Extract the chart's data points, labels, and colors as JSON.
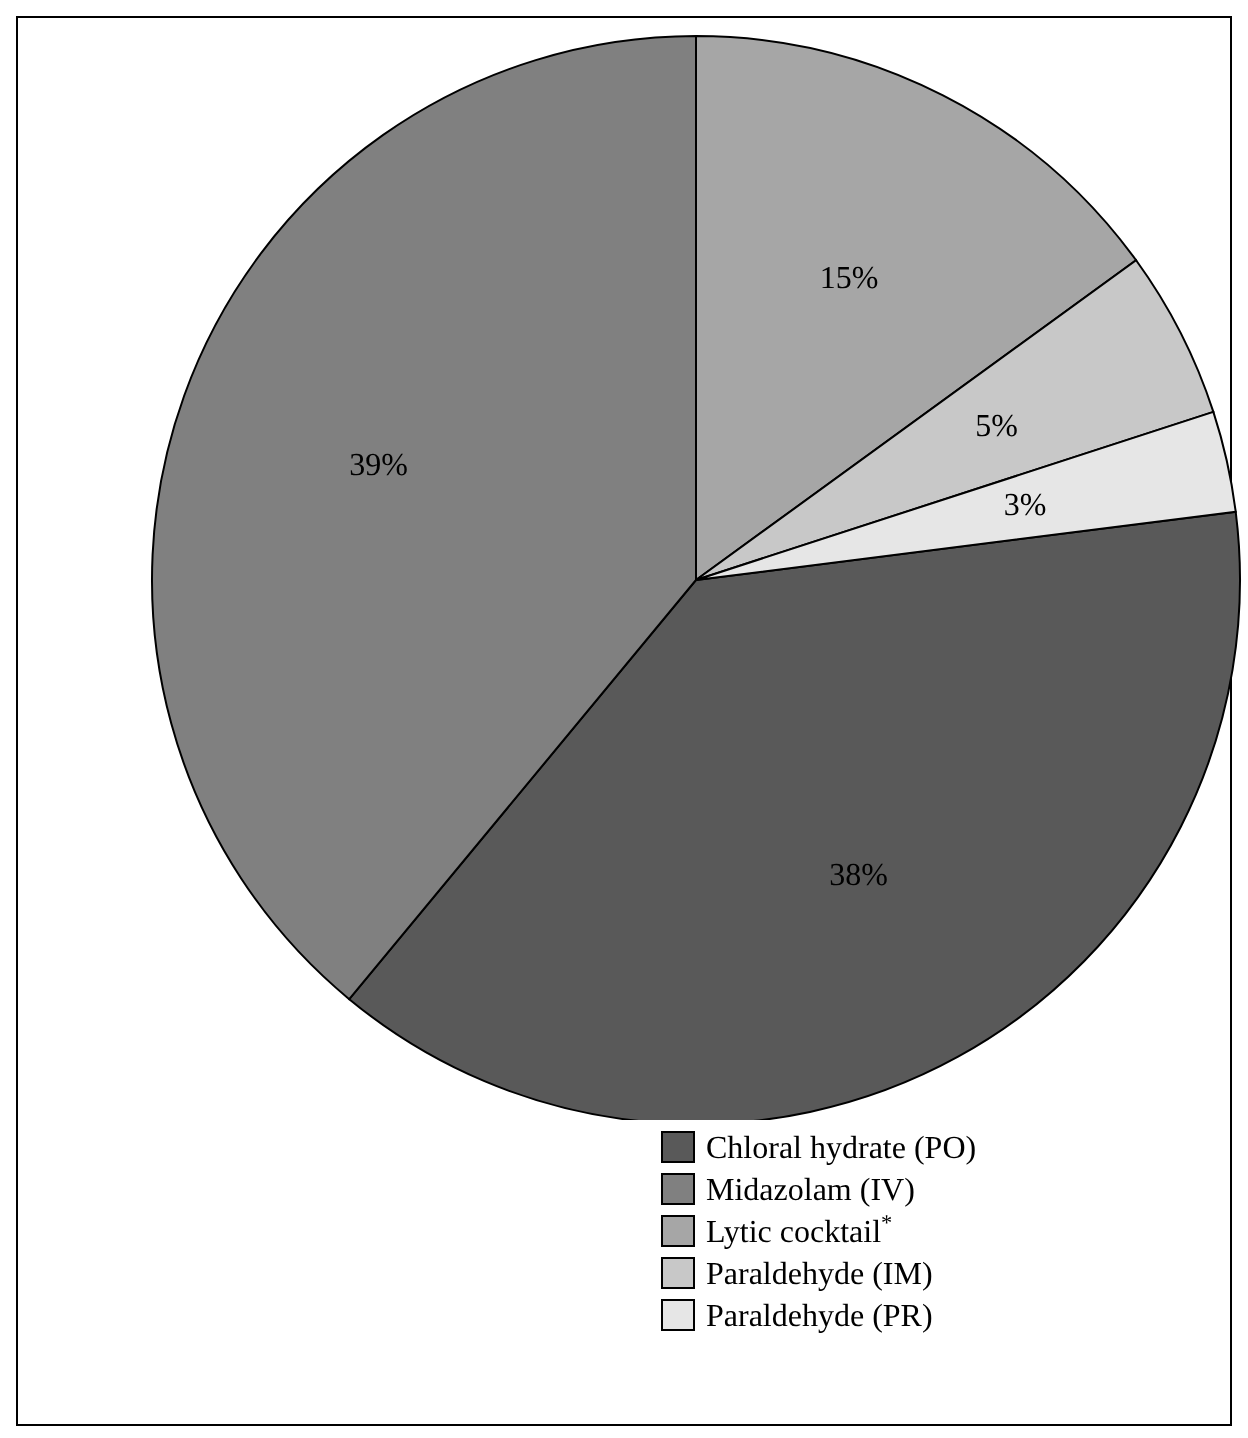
{
  "chart_data": {
    "type": "pie",
    "categories": [
      "Chloral hydrate (PO)",
      "Midazolam (IV)",
      "Lytic cocktail$^{*}$",
      "Paraldehyde (IM)",
      "Paraldehyde (PR)"
    ],
    "values": [
      38,
      39,
      15,
      5,
      3
    ],
    "colors": [
      "#595959",
      "#808080",
      "#a6a6a6",
      "#c8c8c8",
      "#e6e6e6"
    ],
    "value_labels": [
      "38%",
      "39%",
      "15%",
      "5%",
      "3%"
    ],
    "legend": "bottom right"
  }
}
